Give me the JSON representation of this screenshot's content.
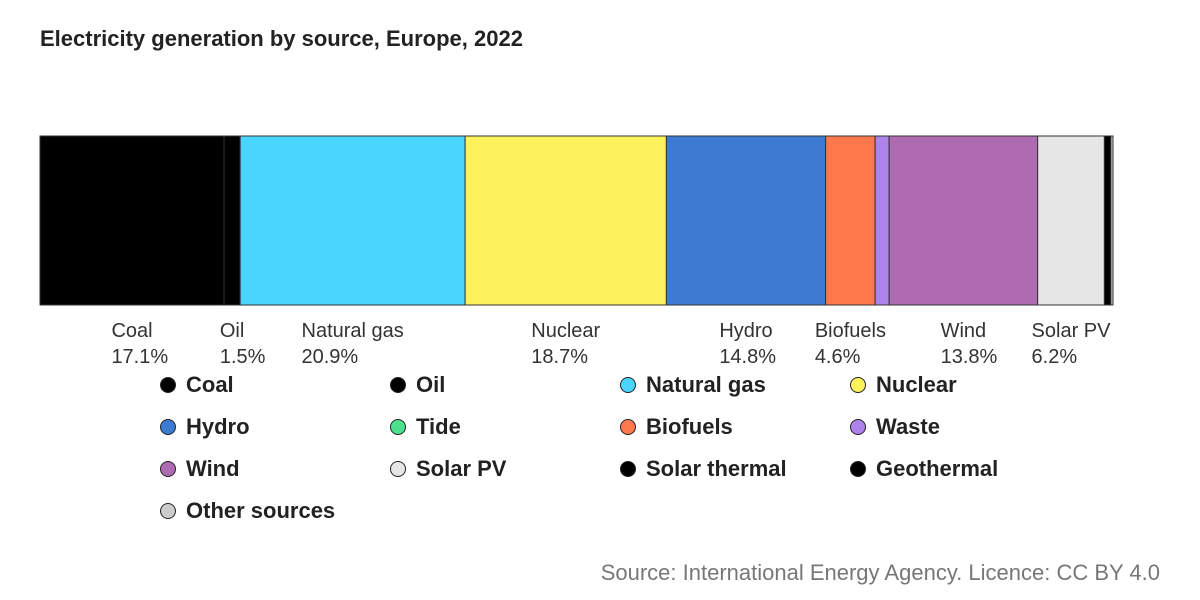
{
  "chart_data": {
    "type": "bar",
    "orientation": "horizontal-stacked",
    "title": "Electricity generation by source, Europe, 2022",
    "unit": "%",
    "segments": [
      {
        "name": "Coal",
        "value": 17.1,
        "color": "#000000",
        "label": "Coal",
        "value_label": "17.1%"
      },
      {
        "name": "Oil",
        "value": 1.5,
        "color": "#000000",
        "label": "Oil",
        "value_label": "1.5%"
      },
      {
        "name": "Natural gas",
        "value": 20.9,
        "color": "#4AD5FE",
        "label": "Natural gas",
        "value_label": "20.9%"
      },
      {
        "name": "Nuclear",
        "value": 18.7,
        "color": "#FEF35C",
        "label": "Nuclear",
        "value_label": "18.7%"
      },
      {
        "name": "Hydro",
        "value": 14.8,
        "color": "#3D7BD3",
        "label": "Hydro",
        "value_label": "14.8%"
      },
      {
        "name": "Tide",
        "value": 0.0,
        "color": "#4CE18C",
        "label": "",
        "value_label": ""
      },
      {
        "name": "Biofuels",
        "value": 4.6,
        "color": "#FE784B",
        "label": "Biofuels",
        "value_label": "4.6%"
      },
      {
        "name": "Waste",
        "value": 1.3,
        "color": "#AF82EB",
        "label": "",
        "value_label": ""
      },
      {
        "name": "Wind",
        "value": 13.8,
        "color": "#AE6BB2",
        "label": "Wind",
        "value_label": "13.8%"
      },
      {
        "name": "Solar PV",
        "value": 6.2,
        "color": "#E6E6E6",
        "label": "Solar PV",
        "value_label": "6.2%"
      },
      {
        "name": "Solar thermal",
        "value": 0.0,
        "color": "#000000",
        "label": "",
        "value_label": ""
      },
      {
        "name": "Geothermal",
        "value": 0.6,
        "color": "#000000",
        "label": "",
        "value_label": ""
      },
      {
        "name": "Other sources",
        "value": 0.2,
        "color": "#CCCCCC",
        "label": "",
        "value_label": ""
      }
    ],
    "legend": [
      {
        "name": "Coal",
        "color": "#000000"
      },
      {
        "name": "Oil",
        "color": "#000000"
      },
      {
        "name": "Natural gas",
        "color": "#4AD5FE"
      },
      {
        "name": "Nuclear",
        "color": "#FEF35C"
      },
      {
        "name": "Hydro",
        "color": "#3D7BD3"
      },
      {
        "name": "Tide",
        "color": "#4CE18C"
      },
      {
        "name": "Biofuels",
        "color": "#FE784B"
      },
      {
        "name": "Waste",
        "color": "#AF82EB"
      },
      {
        "name": "Wind",
        "color": "#AE6BB2"
      },
      {
        "name": "Solar PV",
        "color": "#E6E6E6"
      },
      {
        "name": "Solar thermal",
        "color": "#000000"
      },
      {
        "name": "Geothermal",
        "color": "#000000"
      },
      {
        "name": "Other sources",
        "color": "#CCCCCC"
      }
    ],
    "source": "Source: International Energy Agency. Licence: CC BY 4.0"
  }
}
